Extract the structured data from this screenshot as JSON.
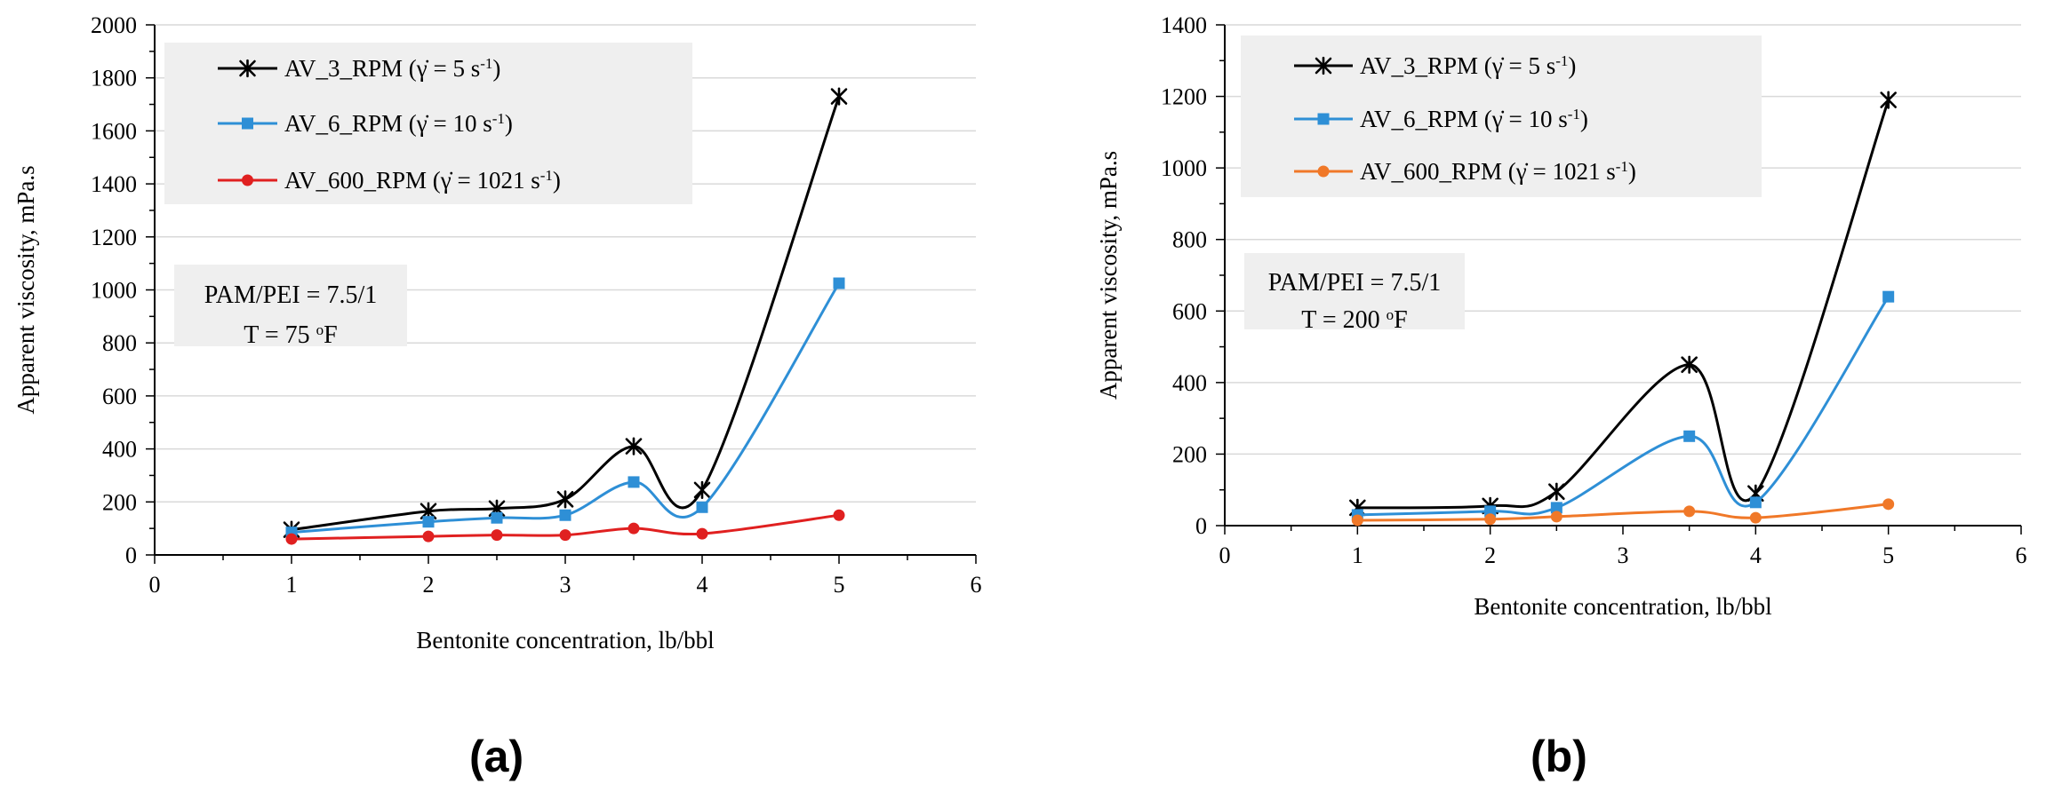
{
  "chart_data": [
    {
      "type": "line",
      "panel_label": "(a)",
      "xlabel": "Bentonite concentration, lb/bbl",
      "ylabel": "Apparent viscosity, mPa.s",
      "xlim": [
        0,
        6
      ],
      "ylim": [
        0,
        2000
      ],
      "xticks": [
        0,
        1,
        2,
        3,
        4,
        5,
        6
      ],
      "yticks": [
        0,
        200,
        400,
        600,
        800,
        1000,
        1200,
        1400,
        1600,
        1800,
        2000
      ],
      "x": [
        1,
        2,
        2.5,
        3,
        3.5,
        4,
        5
      ],
      "series": [
        {
          "name": "AV_3_RPM (γ̇ = 5 s-1)",
          "base": "AV_3_RPM (γ̇ = 5 s",
          "sup": "-1",
          "tail": ")",
          "color": "#000000",
          "marker": "star",
          "values": [
            95,
            165,
            175,
            210,
            410,
            245,
            1730
          ]
        },
        {
          "name": "AV_6_RPM (γ̇ = 10 s-1)",
          "base": "AV_6_RPM (γ̇ = 10 s",
          "sup": "-1",
          "tail": ")",
          "color": "#2e8fd6",
          "marker": "square",
          "values": [
            85,
            125,
            140,
            150,
            275,
            180,
            1025
          ]
        },
        {
          "name": "AV_600_RPM (γ̇ = 1021 s-1)",
          "base": "AV_600_RPM (γ̇ = 1021 s",
          "sup": "-1",
          "tail": ")",
          "color": "#e02020",
          "marker": "circle",
          "values": [
            60,
            70,
            75,
            75,
            100,
            80,
            150
          ]
        }
      ],
      "annotation": {
        "line1": "PAM/PEI = 7.5/1",
        "line2_pre": "T = 75 ",
        "line2_sup": "o",
        "line2_post": "F"
      },
      "legend": "top-left"
    },
    {
      "type": "line",
      "panel_label": "(b)",
      "xlabel": "Bentonite concentration, lb/bbl",
      "ylabel": "Apparent viscosity, mPa.s",
      "xlim": [
        0,
        6
      ],
      "ylim": [
        0,
        1400
      ],
      "xticks": [
        0,
        1,
        2,
        3,
        4,
        5,
        6
      ],
      "yticks": [
        0,
        200,
        400,
        600,
        800,
        1000,
        1200,
        1400
      ],
      "x": [
        1,
        2,
        2.5,
        3.5,
        4,
        5
      ],
      "series": [
        {
          "name": "AV_3_RPM (γ̇ = 5 s-1)",
          "base": "AV_3_RPM (γ̇ = 5 s",
          "sup": "-1",
          "tail": ")",
          "color": "#000000",
          "marker": "star",
          "values": [
            50,
            55,
            95,
            450,
            90,
            1190
          ]
        },
        {
          "name": "AV_6_RPM (γ̇ = 10 s-1)",
          "base": "AV_6_RPM (γ̇ = 10 s",
          "sup": "-1",
          "tail": ")",
          "color": "#2e8fd6",
          "marker": "square",
          "values": [
            30,
            40,
            50,
            250,
            65,
            640
          ]
        },
        {
          "name": "AV_600_RPM (γ̇ = 1021 s-1)",
          "base": "AV_600_RPM (γ̇ = 1021 s",
          "sup": "-1",
          "tail": ")",
          "color": "#f07828",
          "marker": "circle",
          "values": [
            15,
            18,
            25,
            40,
            22,
            60
          ]
        }
      ],
      "annotation": {
        "line1": "PAM/PEI = 7.5/1",
        "line2_pre": "T = 200 ",
        "line2_sup": "o",
        "line2_post": "F"
      },
      "legend": "top-left"
    }
  ],
  "colors": {
    "gridline": "#d9d9d9",
    "box_fill": "#efefef",
    "axis": "#000000"
  }
}
